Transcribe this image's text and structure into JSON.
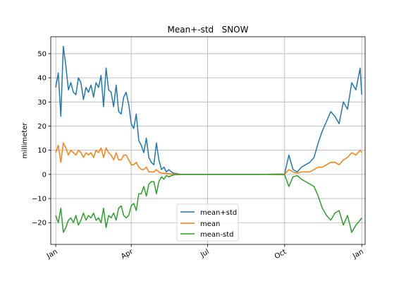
{
  "chart_data": {
    "type": "line",
    "title": "Mean+-std   SNOW",
    "xlabel": "",
    "ylabel": "millimeter",
    "ylim": [
      -29,
      57
    ],
    "xlim_day": [
      -5,
      370
    ],
    "yticks": [
      50,
      40,
      30,
      20,
      10,
      0,
      -10,
      -20
    ],
    "ytick_labels": [
      "50",
      "40",
      "30",
      "20",
      "10",
      "0",
      "−10",
      "−20"
    ],
    "xticks_day": [
      1,
      91,
      182,
      274,
      366
    ],
    "xtick_labels": [
      "Jan",
      "Apr",
      "Jul",
      "Oct",
      "Jan"
    ],
    "grid": true,
    "legend_position": "lower-center",
    "x_unit": "day of year",
    "series": [
      {
        "name": "mean+std",
        "color": "#1f77b4",
        "x": [
          1,
          4,
          7,
          10,
          13,
          16,
          19,
          22,
          25,
          28,
          31,
          34,
          37,
          40,
          43,
          46,
          49,
          52,
          55,
          58,
          61,
          64,
          67,
          70,
          73,
          76,
          79,
          82,
          85,
          88,
          91,
          94,
          97,
          100,
          103,
          106,
          109,
          112,
          115,
          118,
          121,
          124,
          127,
          130,
          133,
          136,
          139,
          142,
          145,
          148,
          151,
          183,
          214,
          244,
          274,
          279,
          284,
          289,
          294,
          299,
          304,
          309,
          314,
          319,
          324,
          329,
          334,
          339,
          344,
          349,
          354,
          359,
          364,
          366
        ],
        "values": [
          36,
          42,
          24,
          53,
          45,
          35,
          38,
          34,
          33,
          40,
          38,
          31,
          36,
          34,
          37,
          32,
          38,
          36,
          41,
          28,
          44,
          35,
          34,
          28,
          37,
          26,
          25,
          32,
          34,
          29,
          21,
          19,
          25,
          14,
          12,
          9,
          15,
          7,
          5,
          4,
          13,
          6,
          2,
          3,
          1,
          2,
          1,
          0.5,
          0.3,
          0.2,
          0,
          0,
          0,
          0,
          0.2,
          8,
          2,
          1,
          3,
          4,
          5,
          7,
          13,
          18,
          22,
          26,
          24,
          21,
          30,
          27,
          38,
          35,
          44,
          33
        ]
      },
      {
        "name": "mean",
        "color": "#ff7f0e",
        "x": [
          1,
          4,
          7,
          10,
          13,
          16,
          19,
          22,
          25,
          28,
          31,
          34,
          37,
          40,
          43,
          46,
          49,
          52,
          55,
          58,
          61,
          64,
          67,
          70,
          73,
          76,
          79,
          82,
          85,
          88,
          91,
          94,
          97,
          100,
          103,
          106,
          109,
          112,
          115,
          118,
          121,
          124,
          127,
          130,
          133,
          136,
          139,
          142,
          145,
          148,
          151,
          183,
          214,
          244,
          274,
          279,
          284,
          289,
          294,
          299,
          304,
          309,
          314,
          319,
          324,
          329,
          334,
          339,
          344,
          349,
          354,
          359,
          364,
          366
        ],
        "values": [
          9,
          12,
          5,
          13,
          11,
          8,
          10,
          9,
          8,
          10,
          9,
          7,
          9,
          8,
          9,
          7,
          10,
          9,
          11,
          7,
          11,
          9,
          8,
          6,
          9,
          6,
          6,
          8,
          8,
          6,
          4,
          4,
          5,
          3,
          2,
          2,
          3,
          1,
          1,
          1,
          2,
          1,
          0.5,
          0.5,
          0.3,
          0.3,
          0.2,
          0.1,
          0.1,
          0.1,
          0,
          0,
          0,
          0,
          0.1,
          2,
          1,
          0.5,
          1,
          1,
          1,
          2,
          3,
          3,
          4,
          5,
          5,
          4,
          6,
          7,
          9,
          8,
          10,
          9
        ]
      },
      {
        "name": "mean-std",
        "color": "#2ca02c",
        "x": [
          1,
          4,
          7,
          10,
          13,
          16,
          19,
          22,
          25,
          28,
          31,
          34,
          37,
          40,
          43,
          46,
          49,
          52,
          55,
          58,
          61,
          64,
          67,
          70,
          73,
          76,
          79,
          82,
          85,
          88,
          91,
          94,
          97,
          100,
          103,
          106,
          109,
          112,
          115,
          118,
          121,
          124,
          127,
          130,
          133,
          136,
          139,
          142,
          145,
          148,
          151,
          183,
          214,
          244,
          274,
          279,
          284,
          289,
          294,
          299,
          304,
          309,
          314,
          319,
          324,
          329,
          334,
          339,
          344,
          349,
          354,
          359,
          364,
          366
        ],
        "values": [
          -17,
          -20,
          -14,
          -24,
          -22,
          -19,
          -18,
          -20,
          -17,
          -21,
          -19,
          -16,
          -19,
          -17,
          -18,
          -16,
          -19,
          -18,
          -20,
          -14,
          -22,
          -17,
          -18,
          -16,
          -19,
          -14,
          -13,
          -17,
          -18,
          -17,
          -13,
          -12,
          -15,
          -8,
          -8,
          -5,
          -9,
          -4,
          -3,
          -3,
          -8,
          -3,
          -1,
          -2,
          -0.5,
          -1,
          -0.5,
          -0.2,
          -0.1,
          -0.1,
          0,
          0,
          0,
          0,
          -0.1,
          -5,
          -1,
          -0.5,
          -2,
          -3,
          -4,
          -5,
          -9,
          -14,
          -17,
          -19,
          -16,
          -15,
          -21,
          -17,
          -24,
          -21,
          -19,
          -18
        ]
      }
    ]
  }
}
